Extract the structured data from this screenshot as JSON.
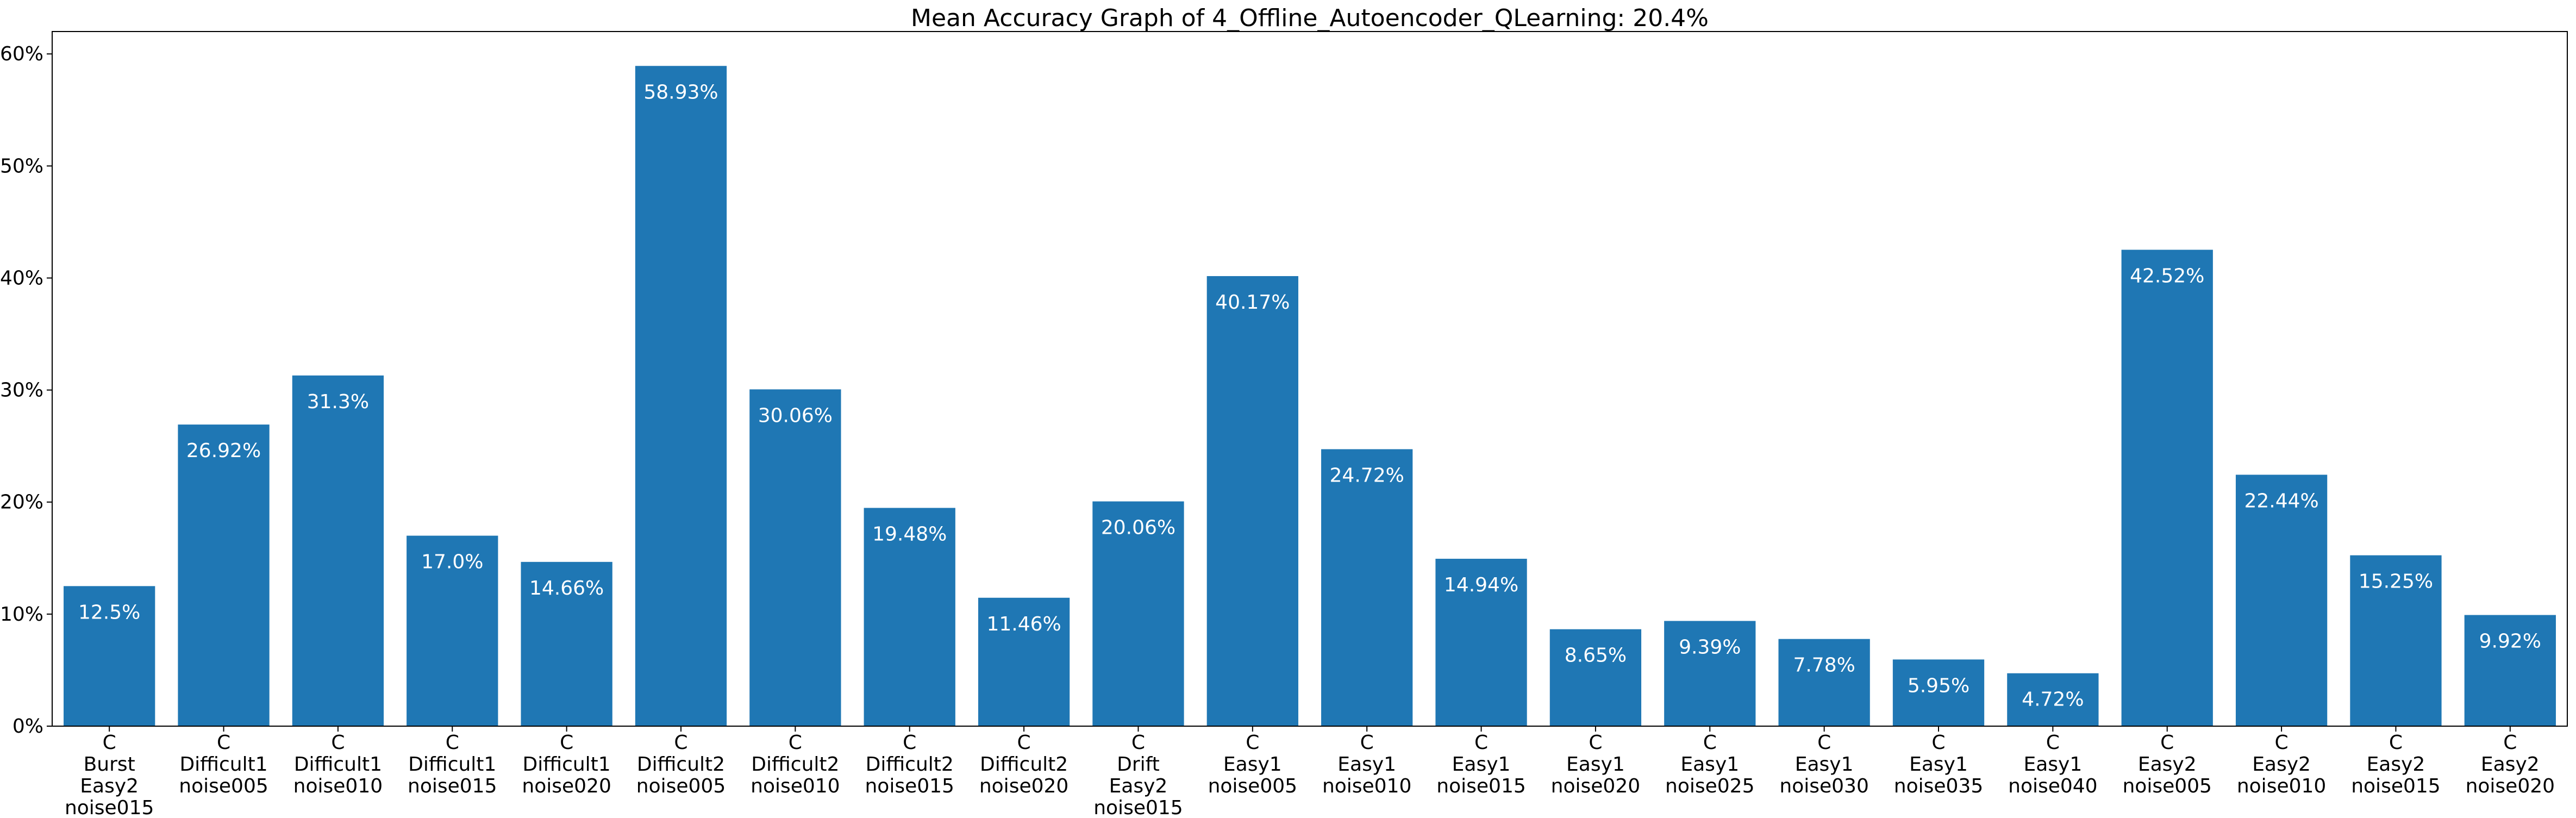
{
  "chart_data": {
    "type": "bar",
    "title": "Mean Accuracy Graph of 4_Offline_Autoencoder_QLearning: 20.4%",
    "xlabel": "",
    "ylabel": "",
    "ylim": [
      0,
      62
    ],
    "yticks": [
      0,
      10,
      20,
      30,
      40,
      50,
      60
    ],
    "ytick_labels": [
      "0%",
      "10%",
      "20%",
      "30%",
      "40%",
      "50%",
      "60%"
    ],
    "grid": false,
    "bar_color": "#1f77b4",
    "categories": [
      [
        "C",
        "Burst",
        "Easy2",
        "noise015"
      ],
      [
        "C",
        "Difficult1",
        "noise005"
      ],
      [
        "C",
        "Difficult1",
        "noise010"
      ],
      [
        "C",
        "Difficult1",
        "noise015"
      ],
      [
        "C",
        "Difficult1",
        "noise020"
      ],
      [
        "C",
        "Difficult2",
        "noise005"
      ],
      [
        "C",
        "Difficult2",
        "noise010"
      ],
      [
        "C",
        "Difficult2",
        "noise015"
      ],
      [
        "C",
        "Difficult2",
        "noise020"
      ],
      [
        "C",
        "Drift",
        "Easy2",
        "noise015"
      ],
      [
        "C",
        "Easy1",
        "noise005"
      ],
      [
        "C",
        "Easy1",
        "noise010"
      ],
      [
        "C",
        "Easy1",
        "noise015"
      ],
      [
        "C",
        "Easy1",
        "noise020"
      ],
      [
        "C",
        "Easy1",
        "noise025"
      ],
      [
        "C",
        "Easy1",
        "noise030"
      ],
      [
        "C",
        "Easy1",
        "noise035"
      ],
      [
        "C",
        "Easy1",
        "noise040"
      ],
      [
        "C",
        "Easy2",
        "noise005"
      ],
      [
        "C",
        "Easy2",
        "noise010"
      ],
      [
        "C",
        "Easy2",
        "noise015"
      ],
      [
        "C",
        "Easy2",
        "noise020"
      ]
    ],
    "values": [
      12.5,
      26.92,
      31.3,
      17.0,
      14.66,
      58.93,
      30.06,
      19.48,
      11.46,
      20.06,
      40.17,
      24.72,
      14.94,
      8.65,
      9.39,
      7.78,
      5.95,
      4.72,
      42.52,
      22.44,
      15.25,
      9.92
    ],
    "data_labels": [
      "12.5%",
      "26.92%",
      "31.3%",
      "17.0%",
      "14.66%",
      "58.93%",
      "30.06%",
      "19.48%",
      "11.46%",
      "20.06%",
      "40.17%",
      "24.72%",
      "14.94%",
      "8.65%",
      "9.39%",
      "7.78%",
      "5.95%",
      "4.72%",
      "42.52%",
      "22.44%",
      "15.25%",
      "9.92%"
    ]
  }
}
